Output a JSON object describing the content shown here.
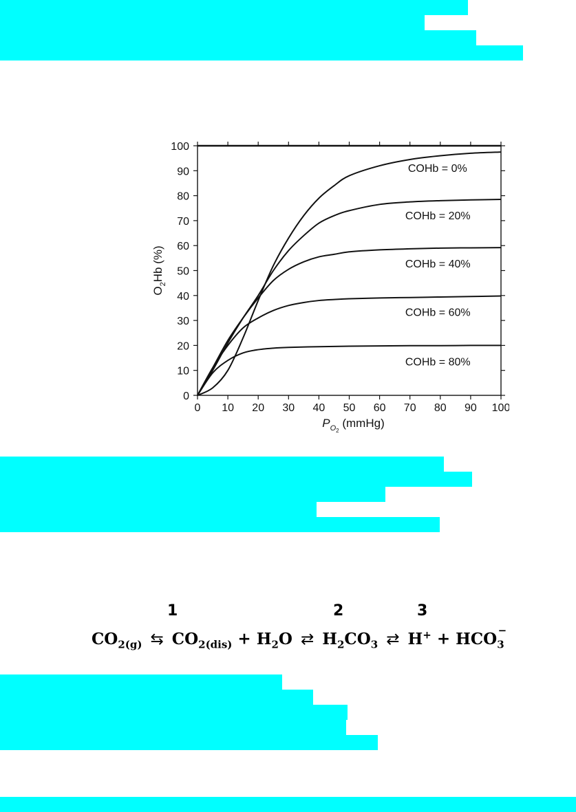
{
  "redactions": [
    "block-1",
    "block-2",
    "block-3",
    "block-4"
  ],
  "chart_data": {
    "type": "line",
    "xlabel": "P",
    "xlabel_sub": "O",
    "xlabel_subsub": "2",
    "xlabel_unit": "(mmHg)",
    "ylabel": "O",
    "ylabel_sub": "2",
    "ylabel_rest": "Hb (%)",
    "xlim": [
      0,
      100
    ],
    "ylim": [
      0,
      100
    ],
    "xticks": [
      0,
      10,
      20,
      30,
      40,
      50,
      60,
      70,
      80,
      90,
      100
    ],
    "yticks": [
      0,
      10,
      20,
      30,
      40,
      50,
      60,
      70,
      80,
      90,
      100
    ],
    "grid": false,
    "series": [
      {
        "name": "COHb = 0%",
        "x": [
          0,
          5,
          10,
          15,
          20,
          25,
          30,
          35,
          40,
          45,
          50,
          60,
          70,
          80,
          90,
          100
        ],
        "y": [
          0,
          3,
          10,
          23,
          38,
          52,
          63,
          72,
          79,
          84,
          88,
          92,
          94.5,
          96,
          97,
          97.5
        ]
      },
      {
        "name": "COHb = 20%",
        "x": [
          0,
          5,
          10,
          15,
          20,
          25,
          30,
          35,
          40,
          45,
          50,
          60,
          70,
          80,
          90,
          100
        ],
        "y": [
          0,
          10,
          21,
          31,
          40,
          50,
          58,
          64,
          69,
          72,
          74,
          76.5,
          77.5,
          78,
          78.3,
          78.5
        ]
      },
      {
        "name": "COHb = 40%",
        "x": [
          0,
          5,
          10,
          15,
          20,
          25,
          30,
          35,
          40,
          45,
          50,
          60,
          70,
          80,
          90,
          100
        ],
        "y": [
          0,
          11,
          22,
          31,
          39,
          46,
          50.5,
          53.5,
          55.5,
          56.5,
          57.5,
          58.3,
          58.7,
          59,
          59.1,
          59.2
        ]
      },
      {
        "name": "COHb = 60%",
        "x": [
          0,
          5,
          10,
          15,
          20,
          25,
          30,
          35,
          40,
          45,
          50,
          60,
          70,
          80,
          90,
          100
        ],
        "y": [
          0,
          11,
          20,
          27,
          31,
          34,
          36,
          37.2,
          38,
          38.4,
          38.7,
          39,
          39.2,
          39.4,
          39.6,
          39.8
        ]
      },
      {
        "name": "COHb = 80%",
        "x": [
          0,
          5,
          10,
          15,
          20,
          25,
          30,
          40,
          50,
          60,
          70,
          80,
          90,
          100
        ],
        "y": [
          0,
          9,
          14,
          17,
          18.3,
          18.9,
          19.2,
          19.5,
          19.7,
          19.8,
          19.9,
          19.9,
          20,
          20
        ]
      }
    ],
    "labels_at_x": 68
  },
  "equation": {
    "numbers": [
      "1",
      "2",
      "3"
    ],
    "co2": "CO",
    "two": "2",
    "g": "(g)",
    "dis": "(dis)",
    "plus": "+",
    "h": "H",
    "o": "O",
    "h2co3_h": "H",
    "h2co3_co": "CO",
    "three": "3",
    "hplus_h": "H",
    "hplus_sup": "+",
    "hco": "HCO",
    "hco_sup": "−",
    "arrow1": "⇆",
    "arrow2": "⇄",
    "arrow3": "⇄"
  }
}
